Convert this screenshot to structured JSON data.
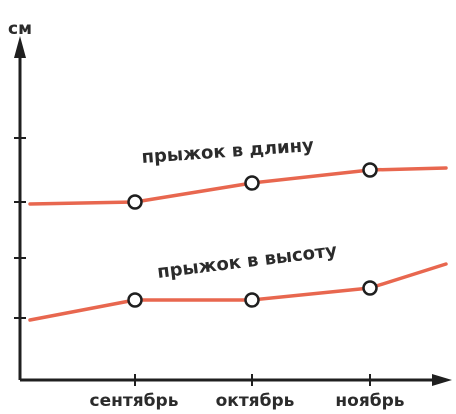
{
  "chart_data": {
    "type": "line",
    "ylabel": "см",
    "categories": [
      "сентябрь",
      "октябрь",
      "ноябрь"
    ],
    "colors": {
      "line": "#e8674f",
      "axis": "#1f1f1f",
      "marker_fill": "#ffffff",
      "marker_stroke": "#1f1f1f"
    },
    "series": [
      {
        "name": "прыжок в длину",
        "values": [
          202,
          183,
          170
        ],
        "start": 204,
        "end": 168
      },
      {
        "name": "прыжок в высоту",
        "values": [
          300,
          300,
          288
        ],
        "start": 320,
        "end": 264
      }
    ]
  }
}
